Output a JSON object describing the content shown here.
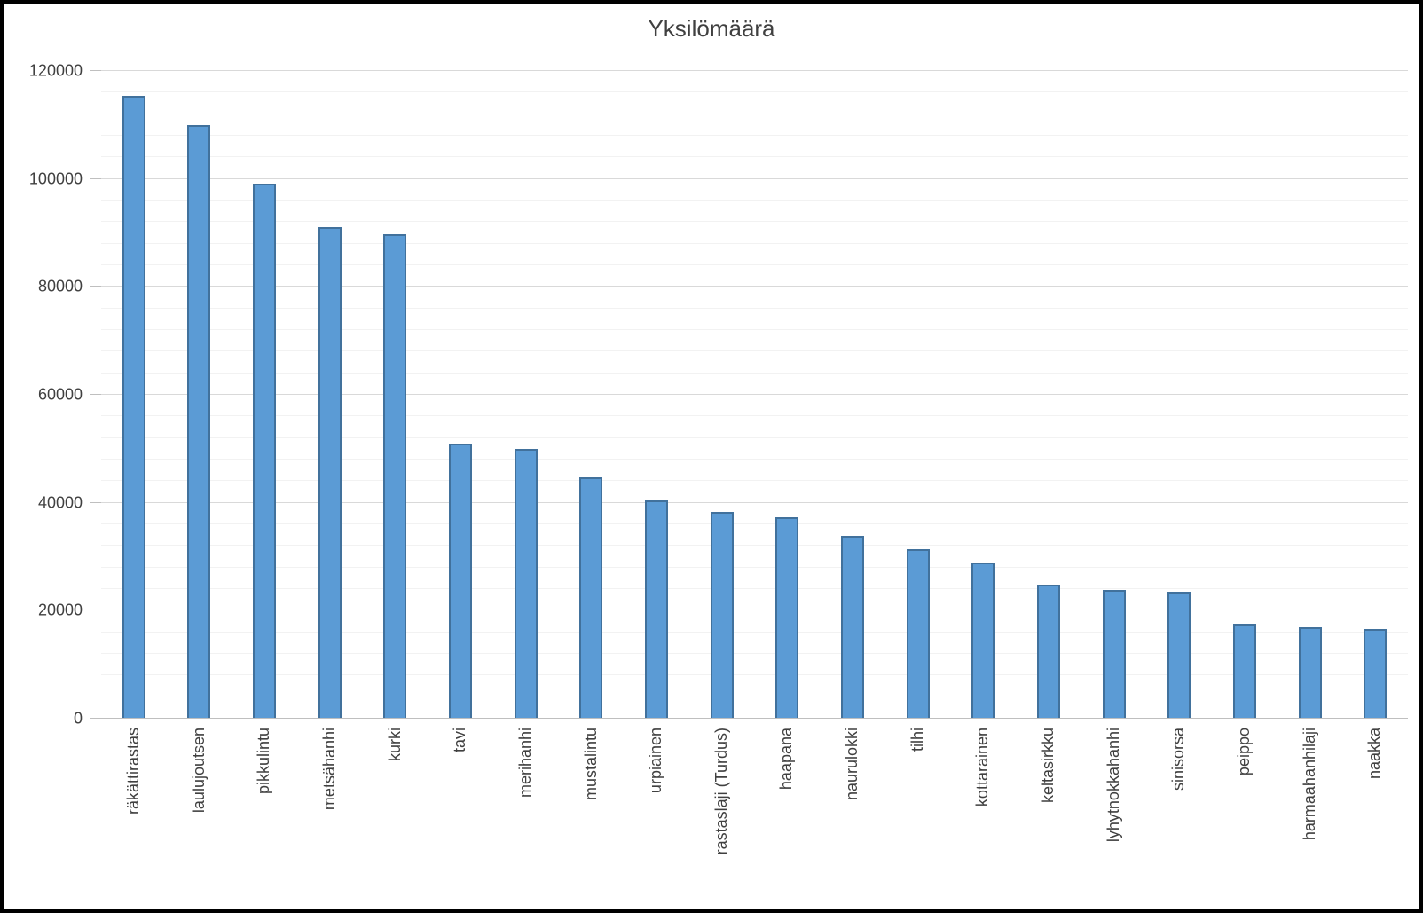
{
  "title": "Yksilömäärä",
  "chart_data": {
    "type": "bar",
    "title": "Yksilömäärä",
    "categories": [
      "räkättirastas",
      "laulujoutsen",
      "pikkulintu",
      "metsähanhi",
      "kurki",
      "tavi",
      "merihanhi",
      "mustalintu",
      "urpiainen",
      "rastaslaji (Turdus)",
      "haapana",
      "naurulokki",
      "tilhi",
      "kottarainen",
      "keltasirkku",
      "lyhytnokkahanhi",
      "sinisorsa",
      "peippo",
      "harmaahanhilaji",
      "naakka"
    ],
    "values": [
      115400,
      110000,
      99200,
      91000,
      89800,
      50900,
      49900,
      44700,
      40400,
      38300,
      37300,
      33900,
      31400,
      28900,
      24800,
      23900,
      23500,
      17600,
      17000,
      16600
    ],
    "xlabel": "",
    "ylabel": "",
    "ylim": [
      0,
      120000
    ],
    "y_major_step": 20000,
    "y_minor_step": 4000,
    "y_tick_labels": [
      "0",
      "20000",
      "40000",
      "60000",
      "80000",
      "100000",
      "120000"
    ],
    "grid": "horizontal major and minor gridlines, no vertical gridlines",
    "legend_position": "none",
    "x_label_rotation_degrees": 90
  },
  "colors": {
    "bar_fill": "#5b9bd5",
    "bar_border": "#41719c",
    "gridline_major": "#d9d9d9",
    "gridline_minor": "#f2f2f2",
    "axis_line": "#bfbfbf",
    "tick_label_text": "#404040",
    "title_text": "#404040",
    "background": "#ffffff",
    "outer_frame": "#000000"
  }
}
